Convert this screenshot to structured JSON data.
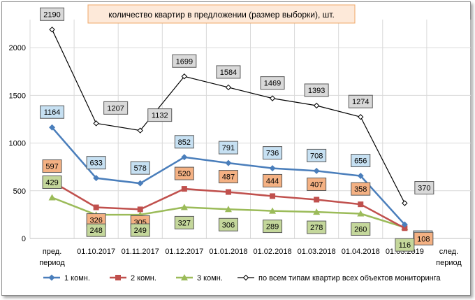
{
  "chart_data": {
    "type": "line",
    "title": "количество квартир в предложении (размер выборки), шт.",
    "categories": [
      "пред. период",
      "01.10.2017",
      "01.11.2017",
      "01.12.2017",
      "01.01.2018",
      "01.02.2018",
      "01.03.2018",
      "01.04.2018",
      "01.03.2019",
      "след. период"
    ],
    "ylim": [
      0,
      2500
    ],
    "yticks": [
      0,
      500,
      1000,
      1500,
      2000
    ],
    "grid": true,
    "legend_position": "bottom",
    "series": [
      {
        "name": "1 комн.",
        "color": "#4a7ebb",
        "marker": "diamond",
        "label_bg": "#c6e0f2",
        "values": [
          1164,
          633,
          578,
          852,
          791,
          736,
          708,
          656,
          146,
          null
        ]
      },
      {
        "name": "2 комн.",
        "color": "#c0504d",
        "marker": "square",
        "label_bg": "#f4b183",
        "values": [
          597,
          326,
          305,
          520,
          487,
          444,
          407,
          358,
          108,
          null
        ]
      },
      {
        "name": "3 комн.",
        "color": "#9bbb59",
        "marker": "triangle",
        "label_bg": "#c4d79b",
        "values": [
          429,
          248,
          249,
          327,
          306,
          289,
          278,
          260,
          116,
          null
        ]
      },
      {
        "name": "по всем типам квартир всех объектов мониторинга",
        "color": "#000000",
        "marker": "open-diamond",
        "label_bg": "#d9d9d9",
        "values": [
          2190,
          1207,
          1132,
          1699,
          1584,
          1469,
          1393,
          1274,
          370,
          null
        ]
      }
    ]
  }
}
